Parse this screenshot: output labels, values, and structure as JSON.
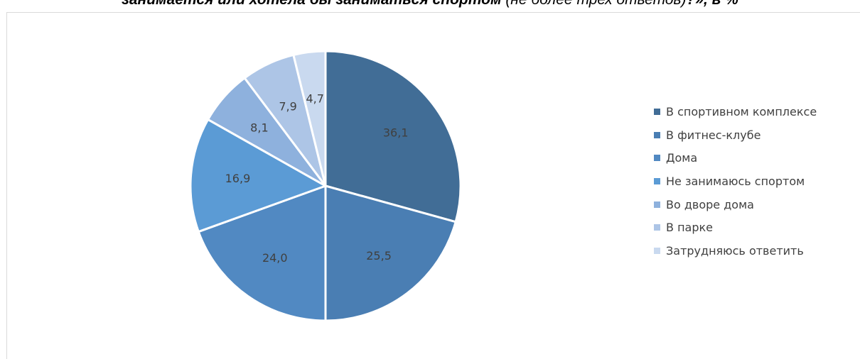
{
  "title": {
    "main": "занимается или хотела бы заниматься спортом",
    "note": " (не более трех ответов)",
    "tail": "?», в %"
  },
  "chart_data": {
    "type": "pie",
    "categories": [
      "В спортивном комплексе",
      "В фитнес-клубе",
      "Дома",
      "Не занимаюсь спортом",
      "Во дворе дома",
      "В парке",
      "Затрудняюсь ответить"
    ],
    "values": [
      36.1,
      25.5,
      24.0,
      16.9,
      8.1,
      7.9,
      4.7
    ],
    "value_labels": [
      "36,1",
      "25,5",
      "24,0",
      "16,9",
      "8,1",
      "7,9",
      "4,7"
    ],
    "colors": [
      "#416d96",
      "#4a7eb3",
      "#5189c2",
      "#5b9bd5",
      "#8eb1dd",
      "#adc5e6",
      "#c9d9ef"
    ],
    "legend": "right",
    "start_angle": "12 o'clock",
    "direction": "clockwise"
  }
}
